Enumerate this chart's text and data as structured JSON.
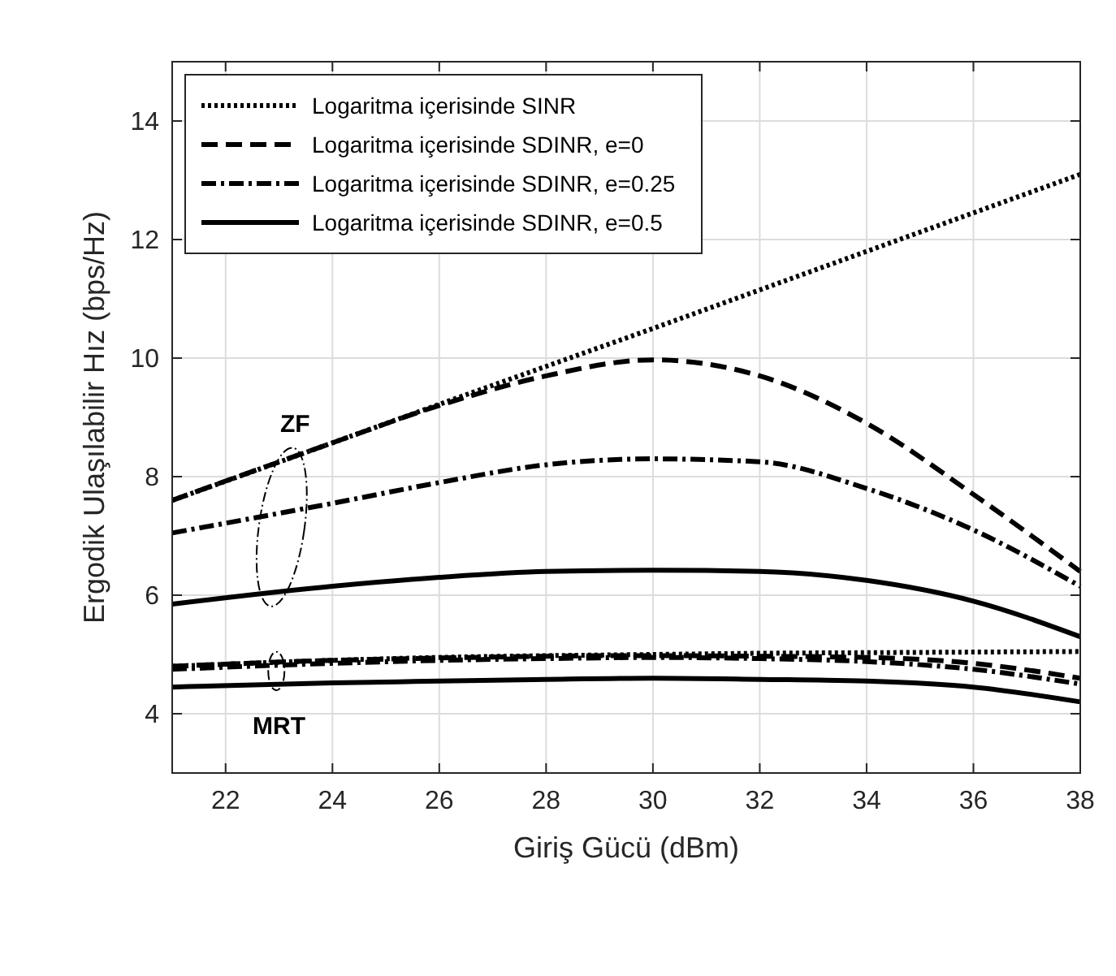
{
  "chart_data": {
    "type": "line",
    "xlabel": "Giriş Gücü (dBm)",
    "ylabel": "Ergodik Ulaşılabilir Hız (bps/Hz)",
    "xlim": [
      21,
      38
    ],
    "ylim": [
      3,
      15
    ],
    "xticks": [
      22,
      24,
      26,
      28,
      30,
      32,
      34,
      36,
      38
    ],
    "yticks": [
      4,
      6,
      8,
      10,
      12,
      14
    ],
    "grid": true,
    "legend": "top left",
    "marker": "none",
    "x": [
      21,
      24,
      26,
      28,
      30,
      32,
      34,
      36,
      38
    ],
    "series": [
      {
        "name": "Logaritma içerisinde SINR",
        "color": "#000000",
        "line_style": "dotted",
        "values": [
          7.6,
          8.57,
          9.22,
          9.86,
          10.5,
          11.15,
          11.8,
          12.45,
          13.1
        ]
      },
      {
        "name": "Logaritma içerisinde SDINR, e=0",
        "color": "#000000",
        "line_style": "dashed",
        "values": [
          7.6,
          8.57,
          9.2,
          9.7,
          9.97,
          9.7,
          8.9,
          7.7,
          6.4
        ]
      },
      {
        "name": "Logaritma içerisinde SDINR, e=0.25",
        "color": "#000000",
        "line_style": "dashdot",
        "values": [
          7.05,
          7.55,
          7.9,
          8.2,
          8.3,
          8.25,
          7.8,
          7.1,
          6.15
        ]
      },
      {
        "name": "Logaritma içerisinde SDINR, e=0.5",
        "color": "#000000",
        "line_style": "solid",
        "values": [
          5.85,
          6.15,
          6.3,
          6.4,
          6.42,
          6.4,
          6.25,
          5.9,
          5.3
        ]
      },
      {
        "color": "#000000",
        "line_style": "dotted",
        "values": [
          4.8,
          4.9,
          4.95,
          4.98,
          5.0,
          5.02,
          5.03,
          5.04,
          5.05
        ]
      },
      {
        "color": "#000000",
        "line_style": "dashed",
        "values": [
          4.8,
          4.9,
          4.94,
          4.97,
          4.98,
          4.97,
          4.95,
          4.85,
          4.6
        ]
      },
      {
        "color": "#000000",
        "line_style": "dashdot",
        "values": [
          4.75,
          4.85,
          4.9,
          4.93,
          4.95,
          4.93,
          4.88,
          4.75,
          4.5
        ]
      },
      {
        "color": "#000000",
        "line_style": "solid",
        "values": [
          4.45,
          4.52,
          4.55,
          4.58,
          4.6,
          4.58,
          4.55,
          4.45,
          4.2
        ]
      }
    ],
    "annotations": [
      "ZF",
      "MRT"
    ]
  }
}
